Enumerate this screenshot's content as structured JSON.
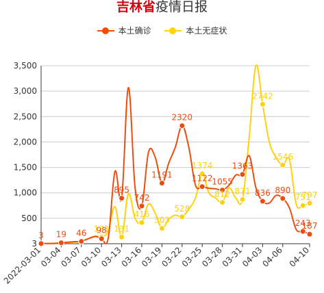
{
  "title": {
    "highlight": "吉林省",
    "rest": "疫情日报"
  },
  "chart_data": {
    "type": "line",
    "categories": [
      "2022-03-01",
      "03-04",
      "03-07",
      "03-10",
      "03-13",
      "03-16",
      "03-19",
      "03-22",
      "03-25",
      "03-28",
      "03-31",
      "04-03",
      "04-06",
      "04-10"
    ],
    "y_ticks": [
      "3",
      "500",
      "1,000",
      "1,500",
      "2,000",
      "2,500",
      "3,000",
      "3,500"
    ],
    "ylim": [
      0,
      3500
    ],
    "grid": true,
    "legend_position": "top",
    "series": [
      {
        "name": "本土确诊",
        "color": "#ee4b0e",
        "points": [
          {
            "x": 0,
            "y": 3,
            "label": "3"
          },
          {
            "x": 3,
            "y": 19,
            "label": "19"
          },
          {
            "x": 6,
            "y": 46,
            "label": "46"
          },
          {
            "x": 9,
            "y": 98,
            "label": "98"
          },
          {
            "x": 12,
            "y": 895,
            "label": "895"
          },
          {
            "x": 15,
            "y": 742,
            "label": "742"
          },
          {
            "x": 18,
            "y": 1191,
            "label": "1191"
          },
          {
            "x": 21,
            "y": 2320,
            "label": "2320"
          },
          {
            "x": 24,
            "y": 1122,
            "label": "1122"
          },
          {
            "x": 27,
            "y": 1055,
            "label": "1055"
          },
          {
            "x": 30,
            "y": 1363,
            "label": "1363"
          },
          {
            "x": 33,
            "y": 836,
            "label": "836"
          },
          {
            "x": 36,
            "y": 890,
            "label": "890"
          },
          {
            "x": 39,
            "y": 243,
            "label": "243"
          },
          {
            "x": 40,
            "y": 187,
            "label": "187"
          }
        ],
        "curve": [
          [
            0,
            3
          ],
          [
            2,
            5
          ],
          [
            3,
            19
          ],
          [
            5,
            40
          ],
          [
            6,
            46
          ],
          [
            8,
            140
          ],
          [
            9,
            98
          ],
          [
            10,
            110
          ],
          [
            11,
            1420
          ],
          [
            12,
            895
          ],
          [
            13,
            3070
          ],
          [
            14,
            1100
          ],
          [
            15,
            742
          ],
          [
            16,
            1800
          ],
          [
            17,
            1700
          ],
          [
            18,
            1191
          ],
          [
            19,
            1580
          ],
          [
            20,
            1900
          ],
          [
            21,
            2320
          ],
          [
            22,
            1900
          ],
          [
            23,
            1150
          ],
          [
            24,
            1122
          ],
          [
            25,
            1090
          ],
          [
            26,
            1080
          ],
          [
            27,
            1055
          ],
          [
            28,
            1150
          ],
          [
            29,
            1350
          ],
          [
            30,
            1363
          ],
          [
            31,
            1730
          ],
          [
            32,
            1100
          ],
          [
            33,
            836
          ],
          [
            34,
            800
          ],
          [
            35,
            950
          ],
          [
            36,
            890
          ],
          [
            37,
            700
          ],
          [
            38,
            280
          ],
          [
            39,
            243
          ],
          [
            40,
            187
          ]
        ]
      },
      {
        "name": "本土无症状",
        "color": "#ffd20a",
        "points": [
          {
            "x": 0,
            "y": 3,
            "label": ""
          },
          {
            "x": 3,
            "y": 19,
            "label": ""
          },
          {
            "x": 6,
            "y": 46,
            "label": ""
          },
          {
            "x": 9,
            "y": 131,
            "label": "131"
          },
          {
            "x": 12,
            "y": 131,
            "label": "131"
          },
          {
            "x": 15,
            "y": 416,
            "label": "416"
          },
          {
            "x": 18,
            "y": 303,
            "label": "303"
          },
          {
            "x": 21,
            "y": 528,
            "label": "528"
          },
          {
            "x": 24,
            "y": 1374,
            "label": "1374"
          },
          {
            "x": 27,
            "y": 812,
            "label": "812"
          },
          {
            "x": 30,
            "y": 871,
            "label": "871"
          },
          {
            "x": 33,
            "y": 2742,
            "label": "2742"
          },
          {
            "x": 36,
            "y": 1546,
            "label": "1546"
          },
          {
            "x": 39,
            "y": 751,
            "label": "751"
          },
          {
            "x": 40,
            "y": 797,
            "label": "797"
          }
        ],
        "curve": [
          [
            0,
            3
          ],
          [
            2,
            10
          ],
          [
            3,
            19
          ],
          [
            5,
            30
          ],
          [
            6,
            46
          ],
          [
            8,
            150
          ],
          [
            9,
            131
          ],
          [
            10,
            250
          ],
          [
            11,
            730
          ],
          [
            12,
            131
          ],
          [
            13,
            980
          ],
          [
            14,
            500
          ],
          [
            15,
            416
          ],
          [
            16,
            780
          ],
          [
            17,
            600
          ],
          [
            18,
            303
          ],
          [
            19,
            480
          ],
          [
            20,
            560
          ],
          [
            21,
            528
          ],
          [
            22,
            680
          ],
          [
            23,
            900
          ],
          [
            24,
            1374
          ],
          [
            25,
            1000
          ],
          [
            26,
            900
          ],
          [
            27,
            812
          ],
          [
            28,
            1100
          ],
          [
            29,
            900
          ],
          [
            30,
            871
          ],
          [
            31,
            2100
          ],
          [
            32,
            3500
          ],
          [
            33,
            2742
          ],
          [
            34,
            2000
          ],
          [
            35,
            1700
          ],
          [
            36,
            1546
          ],
          [
            37,
            1650
          ],
          [
            38,
            780
          ],
          [
            39,
            751
          ],
          [
            40,
            797
          ]
        ]
      }
    ]
  }
}
